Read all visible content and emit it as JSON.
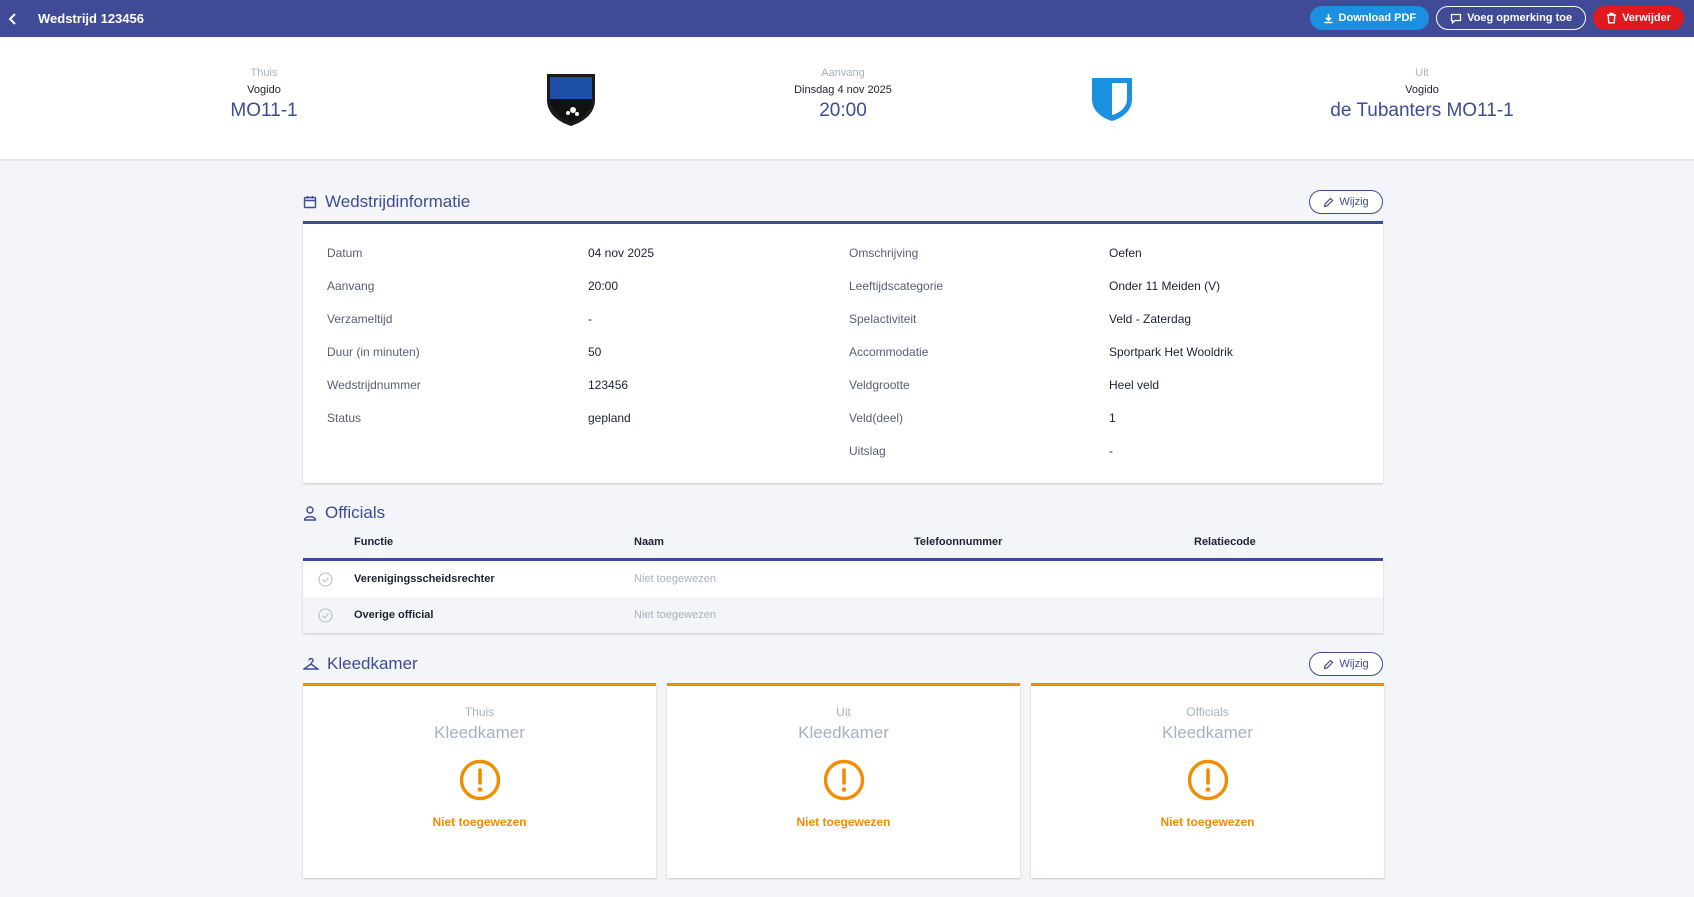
{
  "header": {
    "title": "Wedstrijd 123456",
    "buttons": {
      "download": "Download PDF",
      "remark": "Voeg opmerking toe",
      "delete": "Verwijder"
    }
  },
  "match": {
    "home": {
      "label": "Thuis",
      "club": "Vogido",
      "team": "MO11-1"
    },
    "center": {
      "label": "Aanvang",
      "date": "Dinsdag 4 nov 2025",
      "time": "20:00"
    },
    "away": {
      "label": "Uit",
      "club": "Vogido",
      "team": "de Tubanters MO11-1"
    }
  },
  "info": {
    "title": "Wedstrijdinformatie",
    "edit_label": "Wijzig",
    "left": [
      {
        "label": "Datum",
        "value": "04 nov 2025"
      },
      {
        "label": "Aanvang",
        "value": "20:00"
      },
      {
        "label": "Verzameltijd",
        "value": "-"
      },
      {
        "label": "Duur (in minuten)",
        "value": "50"
      },
      {
        "label": "Wedstrijdnummer",
        "value": "123456"
      },
      {
        "label": "Status",
        "value": "gepland"
      }
    ],
    "right": [
      {
        "label": "Omschrijving",
        "value": "Oefen"
      },
      {
        "label": "Leeftijdscategorie",
        "value": "Onder 11 Meiden (V)"
      },
      {
        "label": "Spelactiviteit",
        "value": "Veld - Zaterdag"
      },
      {
        "label": "Accommodatie",
        "value": "Sportpark Het Wooldrik"
      },
      {
        "label": "Veldgrootte",
        "value": "Heel veld"
      },
      {
        "label": "Veld(deel)",
        "value": "1"
      },
      {
        "label": "Uitslag",
        "value": "-"
      }
    ]
  },
  "officials": {
    "title": "Officials",
    "columns": [
      "Functie",
      "Naam",
      "Telefoonnummer",
      "Relatiecode"
    ],
    "rows": [
      {
        "function": "Verenigingsscheidsrechter",
        "name": "Niet toegewezen"
      },
      {
        "function": "Overige official",
        "name": "Niet toegewezen"
      }
    ]
  },
  "dressing": {
    "title": "Kleedkamer",
    "edit_label": "Wijzig",
    "cards": [
      {
        "label": "Thuis",
        "title": "Kleedkamer",
        "status": "Niet toegewezen"
      },
      {
        "label": "Uit",
        "title": "Kleedkamer",
        "status": "Niet toegewezen"
      },
      {
        "label": "Officials",
        "title": "Kleedkamer",
        "status": "Niet toegewezen"
      }
    ]
  },
  "colors": {
    "primary": "#3f4b96",
    "accent_blue": "#1b8fe0",
    "danger": "#e0191e",
    "warning": "#f28c00"
  },
  "icons": {
    "back": "chevron-left-icon",
    "download": "download-icon",
    "remark": "comment-icon",
    "delete": "trash-icon",
    "calendar": "calendar-icon",
    "officials": "person-icon",
    "dressing": "hanger-icon",
    "edit": "pencil-icon",
    "check": "check-circle-icon",
    "warning": "exclamation-circle-icon"
  }
}
